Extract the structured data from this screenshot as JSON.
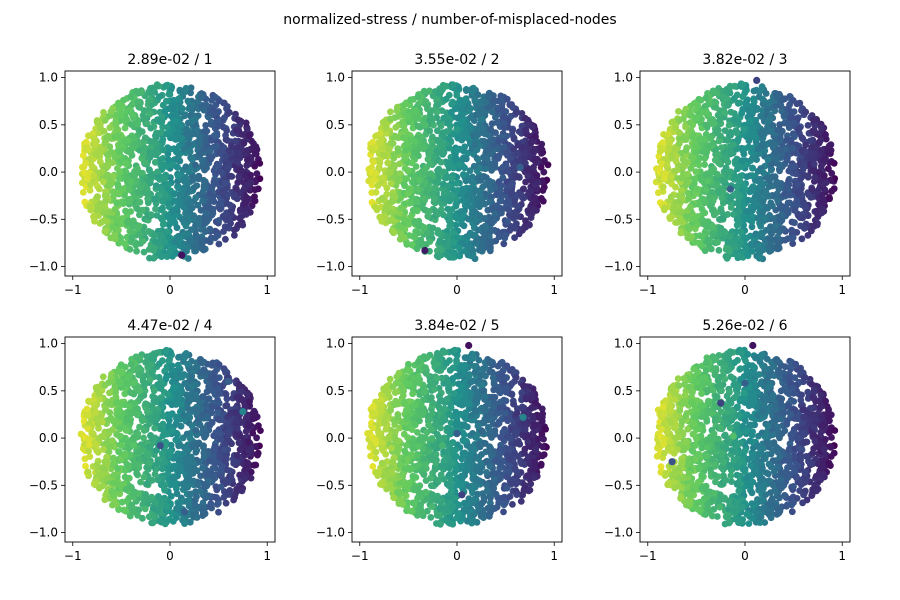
{
  "suptitle": "normalized-stress / number-of-misplaced-nodes",
  "colormap": [
    "#440154",
    "#3b528b",
    "#21918c",
    "#5ec962",
    "#fde725"
  ],
  "axis_ticks": {
    "x": [
      {
        "v": -1,
        "label": "−1"
      },
      {
        "v": 0,
        "label": "0"
      },
      {
        "v": 1,
        "label": "1"
      }
    ],
    "y": [
      {
        "v": 1.0,
        "label": "1.0"
      },
      {
        "v": 0.5,
        "label": "0.5"
      },
      {
        "v": 0.0,
        "label": "0.0"
      },
      {
        "v": -0.5,
        "label": "−0.5"
      },
      {
        "v": -1.0,
        "label": "−1.0"
      }
    ]
  },
  "chart_data": [
    {
      "type": "scatter",
      "title": "2.89e-02 / 1",
      "xlim": [
        -1.08,
        1.08
      ],
      "ylim": [
        -1.1,
        1.07
      ],
      "misplaced": [
        {
          "x": 0.12,
          "y": -0.88,
          "c": 0.05
        }
      ]
    },
    {
      "type": "scatter",
      "title": "3.55e-02 / 2",
      "xlim": [
        -1.08,
        1.08
      ],
      "ylim": [
        -1.1,
        1.07
      ],
      "misplaced": [
        {
          "x": -0.33,
          "y": -0.83,
          "c": 0.08
        },
        {
          "x": 0.65,
          "y": 0.05,
          "c": 0.3
        }
      ]
    },
    {
      "type": "scatter",
      "title": "3.82e-02 / 3",
      "xlim": [
        -1.08,
        1.08
      ],
      "ylim": [
        -1.1,
        1.07
      ],
      "misplaced": [
        {
          "x": 0.12,
          "y": 0.97,
          "c": 0.2
        },
        {
          "x": -0.15,
          "y": -0.18,
          "c": 0.3
        },
        {
          "x": 0.55,
          "y": 0.45,
          "c": 0.2
        }
      ]
    },
    {
      "type": "scatter",
      "title": "4.47e-02 / 4",
      "xlim": [
        -1.08,
        1.08
      ],
      "ylim": [
        -1.1,
        1.07
      ],
      "misplaced": [
        {
          "x": 0.75,
          "y": 0.28,
          "c": 0.45
        },
        {
          "x": 0.15,
          "y": -0.78,
          "c": 0.3
        },
        {
          "x": -0.1,
          "y": -0.08,
          "c": 0.25
        },
        {
          "x": 0.6,
          "y": 0.6,
          "c": 0.3
        }
      ]
    },
    {
      "type": "scatter",
      "title": "3.84e-02 / 5",
      "xlim": [
        -1.08,
        1.08
      ],
      "ylim": [
        -1.1,
        1.07
      ],
      "misplaced": [
        {
          "x": 0.12,
          "y": 0.98,
          "c": 0.05
        },
        {
          "x": 0.68,
          "y": 0.22,
          "c": 0.45
        },
        {
          "x": -0.15,
          "y": -0.08,
          "c": 0.65
        },
        {
          "x": 0.05,
          "y": -0.6,
          "c": 0.2
        },
        {
          "x": 0.0,
          "y": 0.05,
          "c": 0.3
        }
      ]
    },
    {
      "type": "scatter",
      "title": "5.26e-02 / 6",
      "xlim": [
        -1.08,
        1.08
      ],
      "ylim": [
        -1.1,
        1.07
      ],
      "misplaced": [
        {
          "x": 0.08,
          "y": 0.98,
          "c": 0.05
        },
        {
          "x": -0.75,
          "y": -0.25,
          "c": 0.25
        },
        {
          "x": -0.25,
          "y": 0.37,
          "c": 0.2
        },
        {
          "x": -0.12,
          "y": 0.02,
          "c": 0.7
        },
        {
          "x": 0.0,
          "y": 0.58,
          "c": 0.3
        },
        {
          "x": 0.6,
          "y": 0.3,
          "c": 0.15
        }
      ]
    }
  ]
}
